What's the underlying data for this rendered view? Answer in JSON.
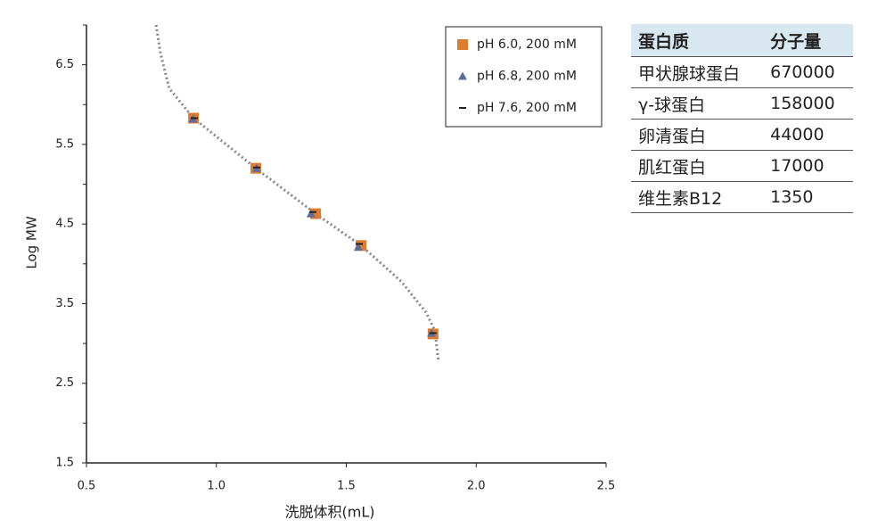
{
  "chart_data": {
    "type": "scatter",
    "xlabel": "洗脱体积(mL)",
    "ylabel": "Log MW",
    "xlim": [
      0.5,
      2.5
    ],
    "xticks": [
      0.5,
      {
        "value": 1.0,
        "label": "1.0"
      },
      1.5,
      {
        "value": 2.0,
        "label": "2.0"
      },
      2.5
    ],
    "ylim": [
      1.5,
      7.0
    ],
    "yticks": [
      1.5,
      2.5,
      3.5,
      4.5,
      5.5,
      6.5
    ],
    "yminorticks": [
      2,
      3,
      4,
      5,
      6,
      7
    ],
    "legend": "top-right",
    "series": [
      {
        "name": "pH 6.0, 200 mM",
        "marker": "square",
        "color": "#e07b2e",
        "x": [
          0.912,
          1.152,
          1.382,
          1.557,
          1.834
        ],
        "values": [
          5.83,
          5.2,
          4.63,
          4.23,
          3.12
        ]
      },
      {
        "name": "pH 6.8, 200 mM",
        "marker": "triangle",
        "color": "#5a6e9c",
        "x": [
          0.91,
          1.155,
          1.364,
          1.546,
          1.828
        ],
        "values": [
          5.82,
          5.2,
          4.63,
          4.21,
          3.13
        ]
      },
      {
        "name": "pH 7.6, 200 mM",
        "marker": "dash",
        "color": "#222222",
        "x": [
          0.915,
          1.155,
          1.371,
          1.55,
          1.834
        ],
        "values": [
          5.83,
          5.21,
          4.65,
          4.25,
          3.13
        ]
      }
    ],
    "fit_curve": {
      "color": "#888888",
      "x": [
        0.768,
        0.785,
        0.819,
        0.912,
        1.152,
        1.382,
        1.557,
        1.711,
        1.807,
        1.841,
        1.855
      ],
      "values": [
        7.0,
        6.64,
        6.2,
        5.83,
        5.2,
        4.63,
        4.23,
        3.78,
        3.39,
        3.16,
        2.77
      ]
    }
  },
  "table": {
    "header": [
      "蛋白质",
      "分子量"
    ],
    "rows": [
      [
        "甲状腺球蛋白",
        670000
      ],
      [
        "γ-球蛋白",
        158000
      ],
      [
        "卵清蛋白",
        44000
      ],
      [
        "肌红蛋白",
        17000
      ],
      [
        "维生素B12",
        1350
      ]
    ]
  }
}
